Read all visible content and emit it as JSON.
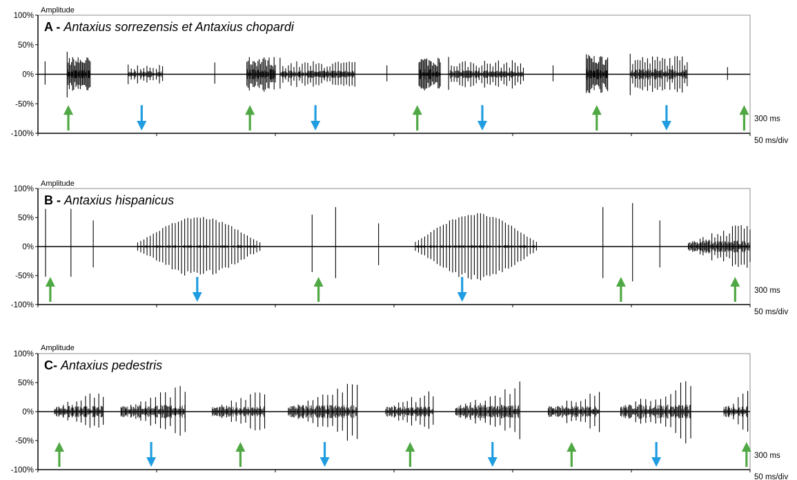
{
  "chart_data": [
    {
      "type": "line",
      "panel_id": "A",
      "title": "A - ",
      "title_species": "Antaxius sorrezensis et Antaxius chopardi",
      "ylabel": "Amplitude",
      "yticks": [
        "100%",
        "50%",
        "0%",
        "-50%",
        "-100%"
      ],
      "ylim": [
        -100,
        100
      ],
      "time_window_label": "300 ms",
      "scale_label": "50 ms/div",
      "xlim": [
        0,
        300
      ],
      "bursts": [
        {
          "start": 3.0,
          "end": 3.3,
          "peak": 22,
          "kind": "spike",
          "count": 1
        },
        {
          "start": 12.3,
          "end": 22.0,
          "peak": 40,
          "kind": "echeme",
          "count": 22
        },
        {
          "start": 38.0,
          "end": 52.5,
          "peak": 25,
          "kind": "echeme",
          "count": 12
        },
        {
          "start": 74.5,
          "end": 74.8,
          "peak": 20,
          "kind": "spike",
          "count": 1
        },
        {
          "start": 88.0,
          "end": 100.0,
          "peak": 40,
          "kind": "echeme",
          "count": 24
        },
        {
          "start": 102.0,
          "end": 133.5,
          "peak": 30,
          "kind": "echeme",
          "count": 28
        },
        {
          "start": 147.0,
          "end": 147.3,
          "peak": 15,
          "kind": "spike",
          "count": 1
        },
        {
          "start": 160.5,
          "end": 169.5,
          "peak": 40,
          "kind": "echeme",
          "count": 20
        },
        {
          "start": 173.0,
          "end": 204.5,
          "peak": 32,
          "kind": "echeme",
          "count": 28
        },
        {
          "start": 217.0,
          "end": 217.3,
          "peak": 15,
          "kind": "spike",
          "count": 1
        },
        {
          "start": 231.0,
          "end": 240.0,
          "peak": 45,
          "kind": "echeme",
          "count": 20
        },
        {
          "start": 249.5,
          "end": 273.5,
          "peak": 42,
          "kind": "echeme",
          "count": 24
        },
        {
          "start": 290.5,
          "end": 290.8,
          "peak": 12,
          "kind": "spike",
          "count": 1
        }
      ],
      "green_arrows_ms": [
        12.8,
        89.3,
        159.8,
        235.4,
        297.5
      ],
      "blue_arrows_ms": [
        43.7,
        116.9,
        187.2,
        264.8
      ]
    },
    {
      "type": "line",
      "panel_id": "B",
      "title": "B - ",
      "title_species": "Antaxius hispanicus",
      "ylabel": "Amplitude",
      "yticks": [
        "100%",
        "50%",
        "0%",
        "-50%",
        "-100%"
      ],
      "ylim": [
        -100,
        100
      ],
      "time_window_label": "300 ms",
      "scale_label": "50 ms/div",
      "xlim": [
        0,
        300
      ],
      "bursts": [
        {
          "start": 3.2,
          "end": 3.5,
          "peak": 65,
          "kind": "spike",
          "count": 1
        },
        {
          "start": 13.9,
          "end": 14.2,
          "peak": 65,
          "kind": "spike",
          "count": 1
        },
        {
          "start": 23.3,
          "end": 23.6,
          "peak": 45,
          "kind": "spike",
          "count": 1
        },
        {
          "start": 42.0,
          "end": 93.5,
          "peak": 52,
          "kind": "swell",
          "count": 40
        },
        {
          "start": 115.5,
          "end": 115.8,
          "peak": 55,
          "kind": "spike",
          "count": 1
        },
        {
          "start": 125.4,
          "end": 125.7,
          "peak": 68,
          "kind": "spike",
          "count": 1
        },
        {
          "start": 143.5,
          "end": 143.8,
          "peak": 40,
          "kind": "spike",
          "count": 1
        },
        {
          "start": 159.0,
          "end": 210.0,
          "peak": 58,
          "kind": "swell",
          "count": 40
        },
        {
          "start": 238.0,
          "end": 238.3,
          "peak": 68,
          "kind": "spike",
          "count": 1
        },
        {
          "start": 250.5,
          "end": 250.8,
          "peak": 75,
          "kind": "spike",
          "count": 1
        },
        {
          "start": 262.0,
          "end": 262.3,
          "peak": 45,
          "kind": "spike",
          "count": 1
        },
        {
          "start": 274.0,
          "end": 300.0,
          "peak": 48,
          "kind": "rise",
          "count": 22
        }
      ],
      "green_arrows_ms": [
        5.2,
        118.2,
        245.6,
        293.7
      ],
      "blue_arrows_ms": [
        67.1,
        178.7
      ]
    },
    {
      "type": "line",
      "panel_id": "C",
      "title": "C- ",
      "title_species": "Antaxius pedestris",
      "ylabel": "Amplitude",
      "yticks": [
        "100%",
        "50%",
        "0%",
        "-50%",
        "-100%"
      ],
      "ylim": [
        -100,
        100
      ],
      "time_window_label": "300 ms",
      "scale_label": "50 ms/div",
      "xlim": [
        0,
        300
      ],
      "bursts": [
        {
          "start": 7.0,
          "end": 27.5,
          "peak": 45,
          "kind": "rise",
          "count": 12
        },
        {
          "start": 35.0,
          "end": 62.0,
          "peak": 55,
          "kind": "rise",
          "count": 14
        },
        {
          "start": 73.5,
          "end": 95.5,
          "peak": 42,
          "kind": "rise",
          "count": 12
        },
        {
          "start": 105.5,
          "end": 134.5,
          "peak": 55,
          "kind": "rise",
          "count": 15
        },
        {
          "start": 146.5,
          "end": 166.5,
          "peak": 42,
          "kind": "rise",
          "count": 12
        },
        {
          "start": 176.0,
          "end": 203.0,
          "peak": 55,
          "kind": "rise",
          "count": 14
        },
        {
          "start": 215.0,
          "end": 236.5,
          "peak": 45,
          "kind": "rise",
          "count": 12
        },
        {
          "start": 245.5,
          "end": 275.0,
          "peak": 58,
          "kind": "rise",
          "count": 15
        },
        {
          "start": 289.0,
          "end": 299.0,
          "peak": 45,
          "kind": "rise",
          "count": 6
        }
      ],
      "green_arrows_ms": [
        9.0,
        85.3,
        156.8,
        224.8,
        298.5
      ],
      "blue_arrows_ms": [
        47.7,
        120.8,
        191.5,
        260.5
      ]
    }
  ],
  "colors": {
    "green_arrow": "#4fa843",
    "blue_arrow": "#1f9de0",
    "waveform": "#000000",
    "axis": "#000000",
    "frame": "#8c8c8c"
  },
  "marker_semantics": {
    "green": "up-arrow-icon",
    "blue": "down-arrow-icon"
  }
}
